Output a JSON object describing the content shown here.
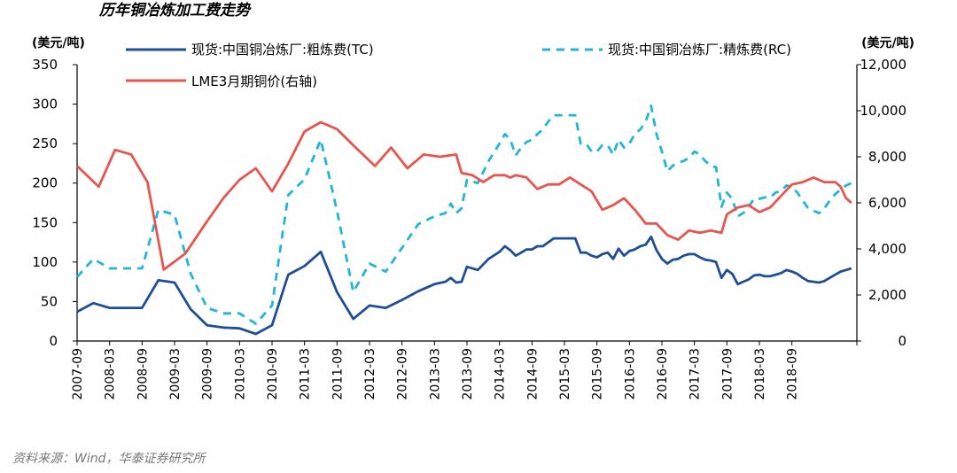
{
  "title": "历年铜冶炼加工费走势",
  "source": "资料来源：Wind，华泰证券研究所",
  "colors": {
    "tc": "#1f4e96",
    "rc": "#22b5d8",
    "lme": "#e8554e",
    "axis": "#000000"
  },
  "chart_data": {
    "type": "line",
    "y_left": {
      "label": "(美元/吨)",
      "min": 0,
      "max": 350,
      "ticks": [
        "0",
        "50",
        "100",
        "150",
        "200",
        "250",
        "300",
        "350"
      ]
    },
    "y_right": {
      "label": "(美元/吨)",
      "min": 0,
      "max": 12000,
      "ticks": [
        "0",
        "2,000",
        "4,000",
        "6,000",
        "8,000",
        "10,000",
        "12,000"
      ]
    },
    "x_ticks": [
      "2007-09",
      "2008-03",
      "2008-09",
      "2009-03",
      "2009-09",
      "2010-03",
      "2010-09",
      "2011-03",
      "2011-09",
      "2012-03",
      "2012-09",
      "2013-03",
      "2013-09",
      "2014-03",
      "2014-09",
      "2015-03",
      "2015-09",
      "2016-03",
      "2016-09",
      "2017-03",
      "2017-09",
      "2018-03",
      "2018-09"
    ],
    "legend": [
      {
        "key": "tc",
        "label": "现货:中国铜冶炼厂:粗炼费(TC)"
      },
      {
        "key": "rc",
        "label": "现货:中国铜冶炼厂:精炼费(RC)"
      },
      {
        "key": "lme",
        "label": "LME3月期铜价(右轴)"
      }
    ],
    "series": [
      {
        "key": "tc",
        "name": "现货:中国铜冶炼厂:粗炼费(TC)",
        "axis": "left",
        "style": "solid",
        "points": [
          [
            0,
            37
          ],
          [
            3,
            48
          ],
          [
            6,
            42
          ],
          [
            9,
            42
          ],
          [
            12,
            42
          ],
          [
            15,
            77
          ],
          [
            18,
            74
          ],
          [
            21,
            40
          ],
          [
            24,
            20
          ],
          [
            27,
            17
          ],
          [
            30,
            16
          ],
          [
            33,
            9
          ],
          [
            36,
            20
          ],
          [
            39,
            84
          ],
          [
            42,
            95
          ],
          [
            45,
            113
          ],
          [
            48,
            62
          ],
          [
            51,
            28
          ],
          [
            54,
            45
          ],
          [
            57,
            42
          ],
          [
            60,
            52
          ],
          [
            63,
            63
          ],
          [
            66,
            72
          ],
          [
            68,
            75
          ],
          [
            69,
            80
          ],
          [
            70,
            74
          ],
          [
            71,
            75
          ],
          [
            72,
            94
          ],
          [
            74,
            90
          ],
          [
            76,
            104
          ],
          [
            78,
            113
          ],
          [
            79,
            120
          ],
          [
            80,
            115
          ],
          [
            81,
            108
          ],
          [
            82,
            112
          ],
          [
            83,
            116
          ],
          [
            84,
            116
          ],
          [
            85,
            120
          ],
          [
            86,
            120
          ],
          [
            87,
            125
          ],
          [
            88,
            130
          ],
          [
            89,
            130
          ],
          [
            91,
            130
          ],
          [
            92,
            130
          ],
          [
            93,
            112
          ],
          [
            94,
            112
          ],
          [
            95,
            108
          ],
          [
            96,
            106
          ],
          [
            97,
            110
          ],
          [
            98,
            112
          ],
          [
            99,
            104
          ],
          [
            100,
            117
          ],
          [
            101,
            108
          ],
          [
            102,
            114
          ],
          [
            103,
            116
          ],
          [
            104,
            120
          ],
          [
            105,
            122
          ],
          [
            106,
            132
          ],
          [
            107,
            115
          ],
          [
            108,
            104
          ],
          [
            109,
            98
          ],
          [
            110,
            103
          ],
          [
            111,
            104
          ],
          [
            112,
            108
          ],
          [
            113,
            110
          ],
          [
            114,
            110
          ],
          [
            115,
            106
          ],
          [
            116,
            103
          ],
          [
            117,
            102
          ],
          [
            118,
            100
          ],
          [
            119,
            80
          ],
          [
            120,
            90
          ],
          [
            121,
            85
          ],
          [
            122,
            72
          ],
          [
            123,
            75
          ],
          [
            124,
            78
          ],
          [
            125,
            83
          ],
          [
            126,
            84
          ],
          [
            127,
            82
          ],
          [
            128,
            82
          ],
          [
            129,
            84
          ],
          [
            130,
            86
          ],
          [
            131,
            90
          ],
          [
            132,
            88
          ],
          [
            133,
            85
          ],
          [
            134,
            80
          ],
          [
            135,
            76
          ],
          [
            136,
            75
          ],
          [
            137,
            74
          ],
          [
            138,
            76
          ],
          [
            139,
            80
          ],
          [
            140,
            84
          ],
          [
            141,
            88
          ],
          [
            142,
            90
          ],
          [
            143,
            92
          ]
        ]
      },
      {
        "key": "rc",
        "name": "现货:中国铜冶炼厂:精炼费(RC)",
        "axis": "left",
        "style": "dashed",
        "points": [
          [
            0,
            81
          ],
          [
            3,
            104
          ],
          [
            6,
            92
          ],
          [
            9,
            92
          ],
          [
            12,
            92
          ],
          [
            15,
            166
          ],
          [
            18,
            160
          ],
          [
            21,
            85
          ],
          [
            24,
            42
          ],
          [
            27,
            35
          ],
          [
            30,
            35
          ],
          [
            33,
            22
          ],
          [
            36,
            45
          ],
          [
            39,
            185
          ],
          [
            42,
            205
          ],
          [
            45,
            255
          ],
          [
            48,
            165
          ],
          [
            51,
            62
          ],
          [
            54,
            98
          ],
          [
            57,
            88
          ],
          [
            60,
            118
          ],
          [
            63,
            148
          ],
          [
            66,
            158
          ],
          [
            68,
            162
          ],
          [
            69,
            174
          ],
          [
            70,
            162
          ],
          [
            71,
            168
          ],
          [
            72,
            204
          ],
          [
            74,
            200
          ],
          [
            76,
            228
          ],
          [
            78,
            250
          ],
          [
            79,
            262
          ],
          [
            80,
            255
          ],
          [
            81,
            235
          ],
          [
            82,
            245
          ],
          [
            83,
            252
          ],
          [
            84,
            255
          ],
          [
            85,
            262
          ],
          [
            86,
            268
          ],
          [
            87,
            278
          ],
          [
            88,
            286
          ],
          [
            89,
            286
          ],
          [
            91,
            286
          ],
          [
            92,
            286
          ],
          [
            93,
            250
          ],
          [
            94,
            250
          ],
          [
            95,
            240
          ],
          [
            96,
            240
          ],
          [
            97,
            248
          ],
          [
            98,
            248
          ],
          [
            99,
            236
          ],
          [
            100,
            255
          ],
          [
            101,
            245
          ],
          [
            102,
            250
          ],
          [
            103,
            262
          ],
          [
            104,
            268
          ],
          [
            105,
            278
          ],
          [
            106,
            298
          ],
          [
            107,
            262
          ],
          [
            108,
            240
          ],
          [
            109,
            215
          ],
          [
            110,
            222
          ],
          [
            111,
            226
          ],
          [
            112,
            228
          ],
          [
            113,
            232
          ],
          [
            114,
            240
          ],
          [
            115,
            236
          ],
          [
            116,
            228
          ],
          [
            117,
            222
          ],
          [
            118,
            220
          ],
          [
            119,
            170
          ],
          [
            120,
            188
          ],
          [
            121,
            180
          ],
          [
            122,
            158
          ],
          [
            123,
            162
          ],
          [
            124,
            170
          ],
          [
            125,
            180
          ],
          [
            126,
            180
          ],
          [
            127,
            182
          ],
          [
            128,
            182
          ],
          [
            129,
            188
          ],
          [
            130,
            190
          ],
          [
            131,
            197
          ],
          [
            132,
            195
          ],
          [
            133,
            188
          ],
          [
            134,
            178
          ],
          [
            135,
            168
          ],
          [
            136,
            165
          ],
          [
            137,
            162
          ],
          [
            138,
            168
          ],
          [
            139,
            178
          ],
          [
            140,
            186
          ],
          [
            141,
            192
          ],
          [
            142,
            197
          ],
          [
            143,
            200
          ]
        ]
      },
      {
        "key": "lme",
        "name": "LME3月期铜价(右轴)",
        "axis": "right",
        "style": "solid",
        "points": [
          [
            0,
            7600
          ],
          [
            4,
            6700
          ],
          [
            7,
            8300
          ],
          [
            10,
            8100
          ],
          [
            13,
            6900
          ],
          [
            16,
            3100
          ],
          [
            20,
            3800
          ],
          [
            24,
            5200
          ],
          [
            27,
            6200
          ],
          [
            30,
            7000
          ],
          [
            33,
            7500
          ],
          [
            36,
            6500
          ],
          [
            39,
            7700
          ],
          [
            42,
            9100
          ],
          [
            45,
            9500
          ],
          [
            48,
            9200
          ],
          [
            51,
            8500
          ],
          [
            55,
            7600
          ],
          [
            58,
            8400
          ],
          [
            61,
            7500
          ],
          [
            64,
            8100
          ],
          [
            67,
            8000
          ],
          [
            70,
            8100
          ],
          [
            71,
            7300
          ],
          [
            73,
            7200
          ],
          [
            75,
            6900
          ],
          [
            77,
            7200
          ],
          [
            79,
            7200
          ],
          [
            80,
            7100
          ],
          [
            81,
            7200
          ],
          [
            83,
            7100
          ],
          [
            85,
            6600
          ],
          [
            87,
            6800
          ],
          [
            89,
            6800
          ],
          [
            91,
            7100
          ],
          [
            93,
            6800
          ],
          [
            95,
            6500
          ],
          [
            97,
            5700
          ],
          [
            99,
            5900
          ],
          [
            101,
            6200
          ],
          [
            103,
            5700
          ],
          [
            105,
            5100
          ],
          [
            107,
            5100
          ],
          [
            109,
            4600
          ],
          [
            111,
            4400
          ],
          [
            113,
            4800
          ],
          [
            115,
            4700
          ],
          [
            117,
            4800
          ],
          [
            119,
            4700
          ],
          [
            120,
            5500
          ],
          [
            122,
            5800
          ],
          [
            124,
            5900
          ],
          [
            126,
            5600
          ],
          [
            128,
            5800
          ],
          [
            130,
            6300
          ],
          [
            132,
            6800
          ],
          [
            134,
            6900
          ],
          [
            136,
            7100
          ],
          [
            138,
            6900
          ],
          [
            140,
            6900
          ],
          [
            141,
            6700
          ],
          [
            142,
            6200
          ],
          [
            143,
            6000
          ]
        ]
      }
    ]
  }
}
